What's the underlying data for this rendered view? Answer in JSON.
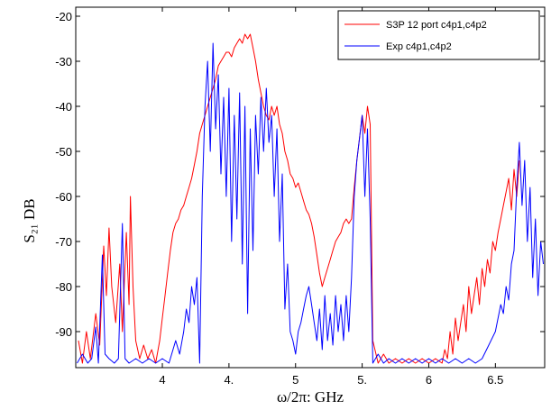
{
  "chart_data": {
    "type": "line",
    "xlabel": "ω/2π: GHz",
    "ylabel": "S₂₁ DB",
    "xlim": [
      3.35,
      6.87
    ],
    "ylim": [
      -98,
      -18
    ],
    "x_ticks": [
      {
        "value": 4.0,
        "label": "4"
      },
      {
        "value": 4.5,
        "label": "4."
      },
      {
        "value": 5.0,
        "label": "5"
      },
      {
        "value": 5.5,
        "label": "5."
      },
      {
        "value": 6.0,
        "label": "6"
      },
      {
        "value": 6.5,
        "label": "6.5"
      }
    ],
    "y_ticks": [
      {
        "value": -20,
        "label": "-20"
      },
      {
        "value": -30,
        "label": "-30"
      },
      {
        "value": -40,
        "label": "-40"
      },
      {
        "value": -50,
        "label": "-50"
      },
      {
        "value": -60,
        "label": "-60"
      },
      {
        "value": -70,
        "label": "-70"
      },
      {
        "value": -80,
        "label": "-80"
      },
      {
        "value": -90,
        "label": "-90"
      }
    ],
    "grid": false,
    "legend_position": "top-right",
    "series": [
      {
        "name": "S3P 12 port c4p1,c4p2",
        "color": "#ff0000",
        "points": [
          [
            3.37,
            -92
          ],
          [
            3.4,
            -97
          ],
          [
            3.43,
            -90
          ],
          [
            3.46,
            -96
          ],
          [
            3.5,
            -86
          ],
          [
            3.53,
            -93
          ],
          [
            3.56,
            -71
          ],
          [
            3.58,
            -82
          ],
          [
            3.6,
            -67
          ],
          [
            3.62,
            -80
          ],
          [
            3.65,
            -88
          ],
          [
            3.68,
            -75
          ],
          [
            3.7,
            -90
          ],
          [
            3.73,
            -68
          ],
          [
            3.75,
            -84
          ],
          [
            3.76,
            -60
          ],
          [
            3.78,
            -80
          ],
          [
            3.8,
            -92
          ],
          [
            3.83,
            -96
          ],
          [
            3.86,
            -93
          ],
          [
            3.89,
            -96
          ],
          [
            3.92,
            -94
          ],
          [
            3.95,
            -97
          ],
          [
            3.98,
            -92
          ],
          [
            4.0,
            -87
          ],
          [
            4.02,
            -82
          ],
          [
            4.04,
            -77
          ],
          [
            4.06,
            -72
          ],
          [
            4.08,
            -68
          ],
          [
            4.1,
            -66
          ],
          [
            4.12,
            -65
          ],
          [
            4.14,
            -63
          ],
          [
            4.16,
            -62
          ],
          [
            4.18,
            -60
          ],
          [
            4.2,
            -58
          ],
          [
            4.22,
            -56
          ],
          [
            4.24,
            -53
          ],
          [
            4.26,
            -50
          ],
          [
            4.28,
            -46
          ],
          [
            4.3,
            -44
          ],
          [
            4.32,
            -42
          ],
          [
            4.34,
            -40
          ],
          [
            4.36,
            -38
          ],
          [
            4.38,
            -36
          ],
          [
            4.4,
            -34
          ],
          [
            4.42,
            -31
          ],
          [
            4.44,
            -30
          ],
          [
            4.46,
            -29
          ],
          [
            4.48,
            -28
          ],
          [
            4.5,
            -28
          ],
          [
            4.52,
            -29
          ],
          [
            4.54,
            -27
          ],
          [
            4.56,
            -26
          ],
          [
            4.58,
            -25
          ],
          [
            4.6,
            -26
          ],
          [
            4.62,
            -24
          ],
          [
            4.64,
            -25
          ],
          [
            4.66,
            -24
          ],
          [
            4.68,
            -27
          ],
          [
            4.7,
            -30
          ],
          [
            4.72,
            -34
          ],
          [
            4.74,
            -37
          ],
          [
            4.76,
            -40
          ],
          [
            4.78,
            -42
          ],
          [
            4.8,
            -43
          ],
          [
            4.82,
            -40
          ],
          [
            4.84,
            -42
          ],
          [
            4.86,
            -40
          ],
          [
            4.88,
            -44
          ],
          [
            4.9,
            -46
          ],
          [
            4.92,
            -50
          ],
          [
            4.94,
            -52
          ],
          [
            4.96,
            -55
          ],
          [
            4.98,
            -56
          ],
          [
            5.0,
            -58
          ],
          [
            5.02,
            -57
          ],
          [
            5.04,
            -59
          ],
          [
            5.06,
            -61
          ],
          [
            5.08,
            -63
          ],
          [
            5.1,
            -64
          ],
          [
            5.12,
            -66
          ],
          [
            5.14,
            -69
          ],
          [
            5.16,
            -73
          ],
          [
            5.18,
            -77
          ],
          [
            5.2,
            -80
          ],
          [
            5.22,
            -78
          ],
          [
            5.24,
            -76
          ],
          [
            5.26,
            -74
          ],
          [
            5.28,
            -72
          ],
          [
            5.3,
            -70
          ],
          [
            5.32,
            -69
          ],
          [
            5.34,
            -68
          ],
          [
            5.36,
            -66
          ],
          [
            5.38,
            -65
          ],
          [
            5.4,
            -66
          ],
          [
            5.42,
            -65
          ],
          [
            5.44,
            -58
          ],
          [
            5.46,
            -52
          ],
          [
            5.48,
            -47
          ],
          [
            5.5,
            -42
          ],
          [
            5.52,
            -46
          ],
          [
            5.54,
            -40
          ],
          [
            5.56,
            -44
          ],
          [
            5.58,
            -92
          ],
          [
            5.62,
            -97
          ],
          [
            5.66,
            -95
          ],
          [
            5.7,
            -97
          ],
          [
            5.75,
            -96
          ],
          [
            5.8,
            -97
          ],
          [
            5.85,
            -96
          ],
          [
            5.9,
            -97
          ],
          [
            5.95,
            -96
          ],
          [
            6.0,
            -97
          ],
          [
            6.05,
            -96
          ],
          [
            6.1,
            -97
          ],
          [
            6.12,
            -94
          ],
          [
            6.14,
            -96
          ],
          [
            6.16,
            -90
          ],
          [
            6.18,
            -95
          ],
          [
            6.2,
            -87
          ],
          [
            6.22,
            -92
          ],
          [
            6.24,
            -88
          ],
          [
            6.26,
            -84
          ],
          [
            6.28,
            -90
          ],
          [
            6.3,
            -80
          ],
          [
            6.32,
            -86
          ],
          [
            6.34,
            -82
          ],
          [
            6.36,
            -78
          ],
          [
            6.38,
            -84
          ],
          [
            6.4,
            -76
          ],
          [
            6.42,
            -80
          ],
          [
            6.44,
            -74
          ],
          [
            6.46,
            -77
          ],
          [
            6.48,
            -70
          ],
          [
            6.5,
            -72
          ],
          [
            6.52,
            -68
          ],
          [
            6.54,
            -65
          ],
          [
            6.56,
            -62
          ],
          [
            6.58,
            -59
          ],
          [
            6.6,
            -56
          ],
          [
            6.62,
            -63
          ],
          [
            6.64,
            -54
          ],
          [
            6.66,
            -60
          ],
          [
            6.68,
            -52
          ]
        ]
      },
      {
        "name": "Exp c4p1,c4p2",
        "color": "#0000ff",
        "points": [
          [
            3.36,
            -97
          ],
          [
            3.4,
            -95
          ],
          [
            3.44,
            -97
          ],
          [
            3.47,
            -96
          ],
          [
            3.5,
            -89
          ],
          [
            3.52,
            -97
          ],
          [
            3.55,
            -73
          ],
          [
            3.57,
            -95
          ],
          [
            3.6,
            -96
          ],
          [
            3.64,
            -97
          ],
          [
            3.67,
            -96
          ],
          [
            3.7,
            -66
          ],
          [
            3.72,
            -96
          ],
          [
            3.75,
            -97
          ],
          [
            3.8,
            -96
          ],
          [
            3.85,
            -97
          ],
          [
            3.9,
            -96
          ],
          [
            3.95,
            -97
          ],
          [
            4.0,
            -96
          ],
          [
            4.05,
            -97
          ],
          [
            4.1,
            -92
          ],
          [
            4.13,
            -95
          ],
          [
            4.16,
            -90
          ],
          [
            4.18,
            -85
          ],
          [
            4.2,
            -88
          ],
          [
            4.22,
            -80
          ],
          [
            4.24,
            -84
          ],
          [
            4.26,
            -78
          ],
          [
            4.28,
            -97
          ],
          [
            4.3,
            -60
          ],
          [
            4.32,
            -40
          ],
          [
            4.34,
            -30
          ],
          [
            4.36,
            -50
          ],
          [
            4.38,
            -26
          ],
          [
            4.4,
            -45
          ],
          [
            4.42,
            -33
          ],
          [
            4.44,
            -55
          ],
          [
            4.46,
            -38
          ],
          [
            4.48,
            -60
          ],
          [
            4.5,
            -36
          ],
          [
            4.52,
            -70
          ],
          [
            4.54,
            -42
          ],
          [
            4.56,
            -65
          ],
          [
            4.58,
            -37
          ],
          [
            4.6,
            -75
          ],
          [
            4.62,
            -40
          ],
          [
            4.64,
            -86
          ],
          [
            4.66,
            -45
          ],
          [
            4.68,
            -72
          ],
          [
            4.7,
            -42
          ],
          [
            4.72,
            -55
          ],
          [
            4.74,
            -38
          ],
          [
            4.76,
            -50
          ],
          [
            4.78,
            -36
          ],
          [
            4.8,
            -48
          ],
          [
            4.82,
            -42
          ],
          [
            4.84,
            -60
          ],
          [
            4.86,
            -45
          ],
          [
            4.88,
            -70
          ],
          [
            4.9,
            -55
          ],
          [
            4.92,
            -85
          ],
          [
            4.94,
            -75
          ],
          [
            4.96,
            -90
          ],
          [
            4.98,
            -92
          ],
          [
            5.0,
            -95
          ],
          [
            5.02,
            -90
          ],
          [
            5.04,
            -88
          ],
          [
            5.06,
            -85
          ],
          [
            5.08,
            -82
          ],
          [
            5.1,
            -80
          ],
          [
            5.12,
            -84
          ],
          [
            5.14,
            -88
          ],
          [
            5.16,
            -92
          ],
          [
            5.18,
            -85
          ],
          [
            5.2,
            -94
          ],
          [
            5.22,
            -82
          ],
          [
            5.24,
            -92
          ],
          [
            5.26,
            -86
          ],
          [
            5.28,
            -93
          ],
          [
            5.3,
            -82
          ],
          [
            5.32,
            -90
          ],
          [
            5.34,
            -84
          ],
          [
            5.36,
            -92
          ],
          [
            5.38,
            -82
          ],
          [
            5.4,
            -90
          ],
          [
            5.42,
            -78
          ],
          [
            5.44,
            -60
          ],
          [
            5.46,
            -52
          ],
          [
            5.48,
            -47
          ],
          [
            5.5,
            -42
          ],
          [
            5.52,
            -60
          ],
          [
            5.54,
            -45
          ],
          [
            5.56,
            -65
          ],
          [
            5.58,
            -97
          ],
          [
            5.62,
            -95
          ],
          [
            5.66,
            -97
          ],
          [
            5.7,
            -96
          ],
          [
            5.75,
            -97
          ],
          [
            5.8,
            -96
          ],
          [
            5.85,
            -97
          ],
          [
            5.9,
            -96
          ],
          [
            5.95,
            -97
          ],
          [
            6.0,
            -96
          ],
          [
            6.05,
            -97
          ],
          [
            6.1,
            -96
          ],
          [
            6.15,
            -97
          ],
          [
            6.2,
            -96
          ],
          [
            6.25,
            -97
          ],
          [
            6.3,
            -96
          ],
          [
            6.35,
            -97
          ],
          [
            6.4,
            -96
          ],
          [
            6.45,
            -93
          ],
          [
            6.5,
            -90
          ],
          [
            6.52,
            -87
          ],
          [
            6.54,
            -84
          ],
          [
            6.56,
            -86
          ],
          [
            6.58,
            -80
          ],
          [
            6.6,
            -83
          ],
          [
            6.62,
            -75
          ],
          [
            6.64,
            -72
          ],
          [
            6.66,
            -58
          ],
          [
            6.68,
            -48
          ],
          [
            6.7,
            -62
          ],
          [
            6.72,
            -52
          ],
          [
            6.74,
            -70
          ],
          [
            6.76,
            -58
          ],
          [
            6.78,
            -78
          ],
          [
            6.8,
            -65
          ],
          [
            6.82,
            -82
          ],
          [
            6.84,
            -70
          ],
          [
            6.86,
            -75
          ]
        ]
      }
    ]
  }
}
